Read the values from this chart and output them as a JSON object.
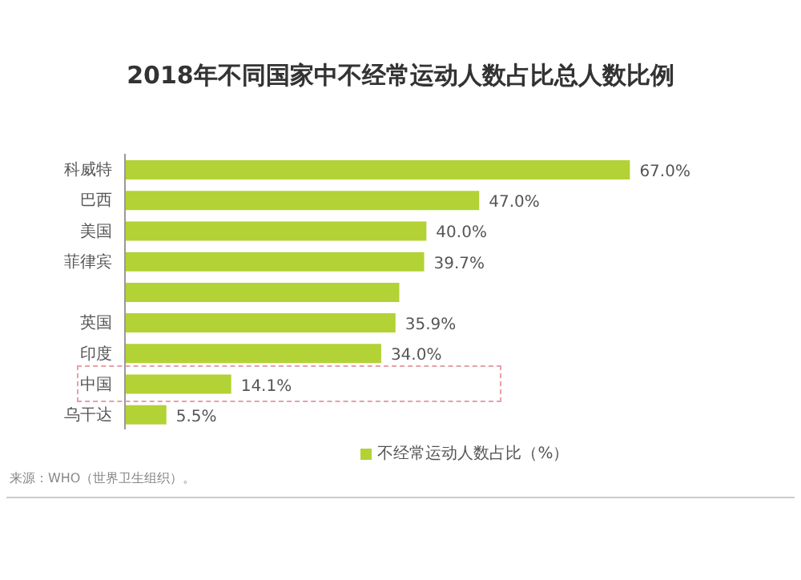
{
  "chart_data": {
    "type": "bar",
    "orientation": "horizontal",
    "title": "2018年不同国家中不经常运动人数占比总人数比例",
    "categories": [
      "科威特",
      "巴西",
      "美国",
      "菲律宾",
      null,
      "英国",
      "印度",
      "中国",
      "乌干达"
    ],
    "series": [
      {
        "name": "不经常运动人数占比（%）",
        "color": "#b2d235",
        "values": [
          67.0,
          47.0,
          40.0,
          39.7,
          36.4,
          35.9,
          34.0,
          14.1,
          5.5
        ],
        "value_labels": [
          "67.0%",
          "47.0%",
          "40.0%",
          "39.7%",
          null,
          "35.9%",
          "34.0%",
          "14.1%",
          "5.5%"
        ]
      }
    ],
    "legend": "bottom",
    "annotations": [
      "来源：WHO（世界卫生组织）。"
    ]
  }
}
